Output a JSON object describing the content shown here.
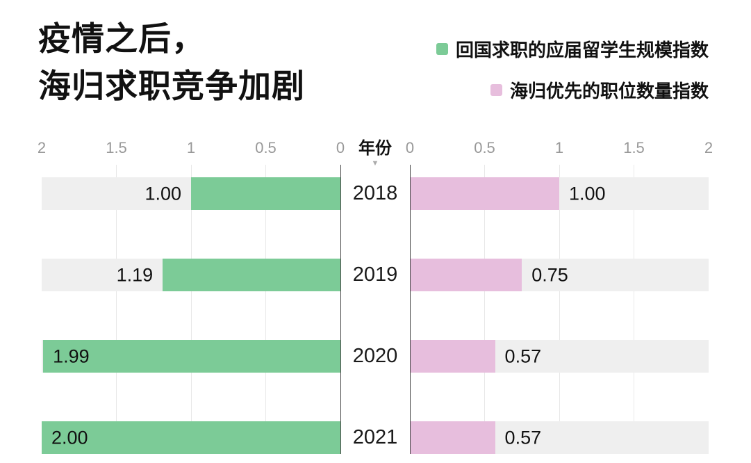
{
  "title": {
    "line1": "疫情之后，",
    "line2": "海归求职竞争加剧"
  },
  "legend": [
    {
      "label": "回国求职的应届留学生规模指数",
      "color": "#7ccb97"
    },
    {
      "label": "海归优先的职位数量指数",
      "color": "#e7bedd"
    }
  ],
  "chart_data": {
    "type": "bar",
    "orientation": "horizontal-diverging",
    "center_axis_label": "年份",
    "center_axis_arrow": "▼",
    "categories": [
      "2018",
      "2019",
      "2020",
      "2021"
    ],
    "series": [
      {
        "name": "回国求职的应届留学生规模指数",
        "side": "left",
        "color": "#7ccb97",
        "values": [
          1.0,
          1.19,
          1.99,
          2.0
        ],
        "value_labels": [
          "1.00",
          "1.19",
          "1.99",
          "2.00"
        ]
      },
      {
        "name": "海归优先的职位数量指数",
        "side": "right",
        "color": "#e7bedd",
        "values": [
          1.0,
          0.75,
          0.57,
          0.57
        ],
        "value_labels": [
          "1.00",
          "0.75",
          "0.57",
          "0.57"
        ]
      }
    ],
    "axis": {
      "min": 0,
      "max": 2,
      "left_ticks": [
        "2",
        "1.5",
        "1",
        "0.5",
        "0"
      ],
      "right_ticks": [
        "0",
        "0.5",
        "1",
        "1.5",
        "2"
      ]
    },
    "grid": true,
    "legend_position": "top-right",
    "track_color": "#efefef"
  }
}
